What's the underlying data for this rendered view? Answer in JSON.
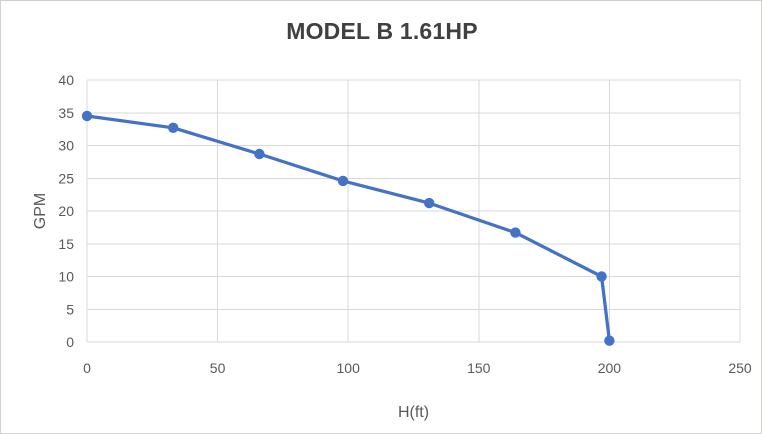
{
  "chart_data": {
    "type": "line",
    "title": "MODEL B 1.61HP",
    "xlabel": "H(ft)",
    "ylabel": "GPM",
    "x": [
      0,
      33,
      66,
      98,
      131,
      164,
      197,
      200
    ],
    "y": [
      34.5,
      32.7,
      28.7,
      24.6,
      21.2,
      16.7,
      10,
      0.2
    ],
    "xlim": [
      0,
      250
    ],
    "ylim": [
      0,
      40
    ],
    "xticks": [
      0,
      50,
      100,
      150,
      200,
      250
    ],
    "yticks": [
      0,
      5,
      10,
      15,
      20,
      25,
      30,
      35,
      40
    ],
    "grid": true,
    "legend": false,
    "marker": "circle",
    "colors": {
      "series_line": "#4472C4",
      "marker_fill": "#4472C4",
      "gridline": "#D9D9D9",
      "axis_line": "#D9D9D9",
      "tick_text": "#595959",
      "axis_title_text": "#595959",
      "title_text": "#404040",
      "canvas_border": "#D2CFCD",
      "background": "#FFFFFF"
    }
  }
}
